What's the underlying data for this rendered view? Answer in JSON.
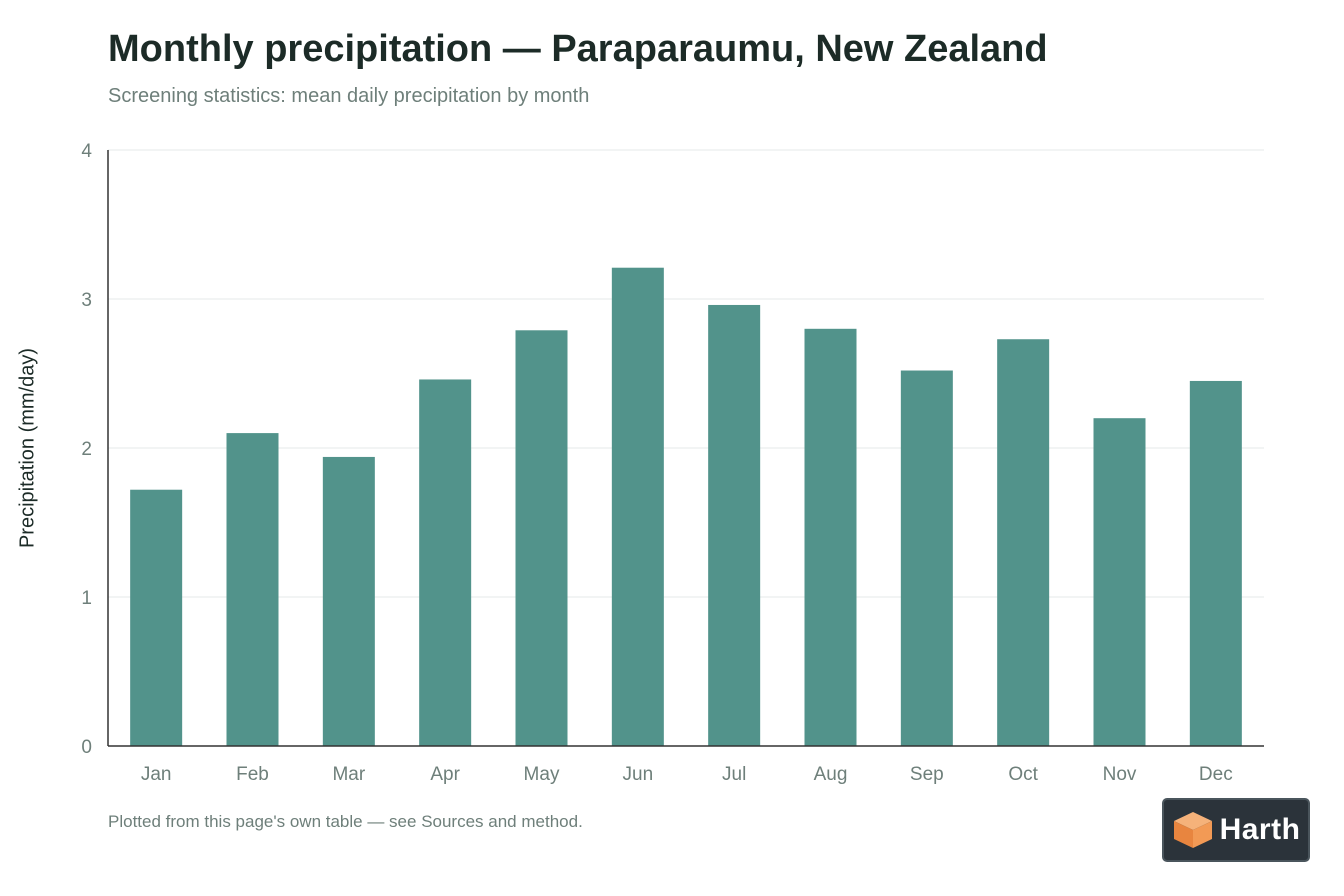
{
  "title": "Monthly precipitation — Paraparaumu, New Zealand",
  "subtitle": "Screening statistics: mean daily precipitation by month",
  "footnote": "Plotted from this page's own table — see Sources and method.",
  "brand": {
    "name": "Harth",
    "logo_icon": "cube-logo-icon"
  },
  "colors": {
    "bar": "#52938b",
    "grid": "#e6e9e8",
    "axis": "#333333",
    "tick_text": "#6e7f7a"
  },
  "chart_data": {
    "type": "bar",
    "categories": [
      "Jan",
      "Feb",
      "Mar",
      "Apr",
      "May",
      "Jun",
      "Jul",
      "Aug",
      "Sep",
      "Oct",
      "Nov",
      "Dec"
    ],
    "values": [
      1.72,
      2.1,
      1.94,
      2.46,
      2.79,
      3.21,
      2.96,
      2.8,
      2.52,
      2.73,
      2.2,
      2.45
    ],
    "title": "Monthly precipitation — Paraparaumu, New Zealand",
    "xlabel": "",
    "ylabel": "Precipitation (mm/day)",
    "ylim": [
      0,
      4
    ],
    "yticks": [
      "0",
      "1",
      "2",
      "3",
      "4"
    ],
    "grid": true,
    "legend": "none"
  }
}
